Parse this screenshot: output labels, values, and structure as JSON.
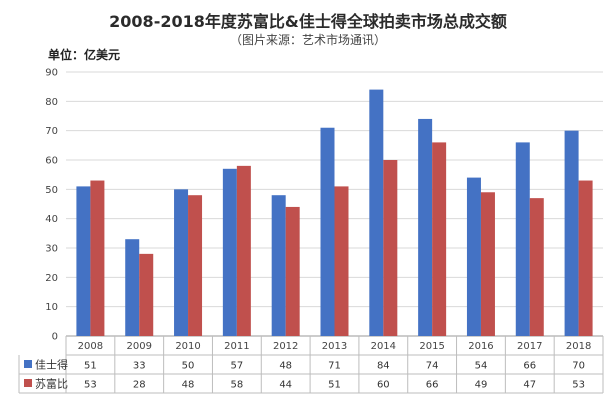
{
  "chart_data": {
    "type": "bar",
    "title": "2008-2018年度苏富比&佳士得全球拍卖市场总成交额",
    "subtitle": "（图片来源：艺术市场通讯）",
    "unit_label": "单位：亿美元",
    "categories": [
      "2008",
      "2009",
      "2010",
      "2011",
      "2012",
      "2013",
      "2014",
      "2015",
      "2016",
      "2017",
      "2018"
    ],
    "series": [
      {
        "name": "佳士得",
        "color": "#4472C4",
        "values": [
          51,
          33,
          50,
          57,
          48,
          71,
          84,
          74,
          54,
          66,
          70
        ]
      },
      {
        "name": "苏富比",
        "color": "#C0504D",
        "values": [
          53,
          28,
          48,
          58,
          44,
          51,
          60,
          66,
          49,
          47,
          53
        ]
      }
    ],
    "ylim": [
      0,
      90
    ],
    "yticks": [
      0,
      10,
      20,
      30,
      40,
      50,
      60,
      70,
      80,
      90
    ],
    "grid": true,
    "legend": "data-table"
  }
}
